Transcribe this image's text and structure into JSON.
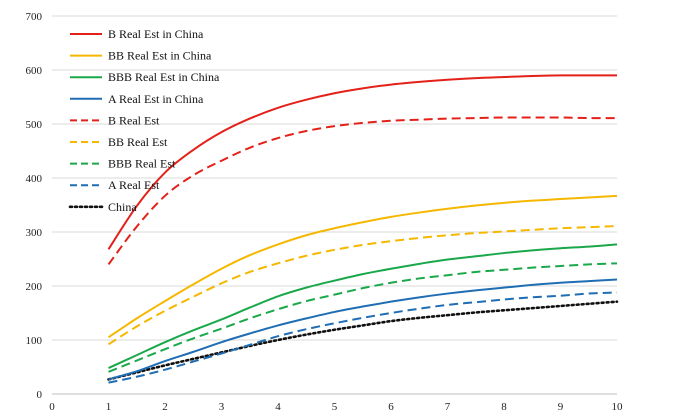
{
  "chart_data": {
    "type": "line",
    "title": "",
    "xlabel": "",
    "ylabel": "",
    "xlim": [
      0,
      10
    ],
    "ylim": [
      0,
      700
    ],
    "x_ticks": [
      "0",
      "1",
      "2",
      "3",
      "4",
      "5",
      "6",
      "7",
      "8",
      "9",
      "10"
    ],
    "y_ticks": [
      "0",
      "100",
      "200",
      "300",
      "400",
      "500",
      "600",
      "700"
    ],
    "grid": "horizontal",
    "legend_position": "top-left",
    "x": [
      1,
      1.5,
      2,
      2.5,
      3,
      3.5,
      4,
      4.5,
      5,
      5.5,
      6,
      6.5,
      7,
      7.5,
      8,
      8.5,
      9,
      9.5,
      10
    ],
    "series": [
      {
        "name": "B Real Est in China",
        "color": "#e32119",
        "dash": "solid",
        "values": [
          268,
          348,
          410,
          452,
          485,
          510,
          530,
          545,
          557,
          566,
          573,
          578,
          582,
          585,
          587,
          589,
          590,
          590,
          590
        ]
      },
      {
        "name": "BB Real Est in China",
        "color": "#f5b700",
        "dash": "solid",
        "values": [
          105,
          140,
          172,
          203,
          232,
          257,
          277,
          294,
          307,
          318,
          328,
          336,
          343,
          349,
          354,
          358,
          361,
          364,
          367
        ]
      },
      {
        "name": "BBB Real Est in China",
        "color": "#1aa84a",
        "dash": "solid",
        "values": [
          48,
          72,
          96,
          118,
          138,
          160,
          181,
          197,
          210,
          222,
          232,
          241,
          249,
          255,
          261,
          266,
          270,
          273,
          277
        ]
      },
      {
        "name": "A Real Est in China",
        "color": "#1f6db3",
        "dash": "solid",
        "values": [
          27,
          42,
          61,
          78,
          96,
          112,
          127,
          140,
          152,
          162,
          171,
          179,
          186,
          192,
          197,
          202,
          206,
          209,
          212
        ]
      },
      {
        "name": "B Real Est",
        "color": "#e32119",
        "dash": "dashed",
        "values": [
          240,
          310,
          367,
          405,
          432,
          456,
          474,
          487,
          496,
          502,
          506,
          508,
          510,
          511,
          512,
          512,
          512,
          511,
          511
        ]
      },
      {
        "name": "BB Real Est",
        "color": "#f5b700",
        "dash": "dashed",
        "values": [
          92,
          125,
          154,
          180,
          205,
          226,
          242,
          256,
          267,
          276,
          283,
          289,
          294,
          298,
          301,
          304,
          307,
          309,
          311
        ]
      },
      {
        "name": "BBB Real Est",
        "color": "#1aa84a",
        "dash": "dashed",
        "values": [
          41,
          62,
          83,
          103,
          121,
          140,
          157,
          172,
          184,
          196,
          206,
          214,
          220,
          226,
          230,
          234,
          237,
          240,
          242
        ]
      },
      {
        "name": "A Real Est",
        "color": "#1f6db3",
        "dash": "dashed",
        "values": [
          21,
          32,
          45,
          60,
          75,
          91,
          107,
          120,
          131,
          141,
          150,
          158,
          165,
          170,
          175,
          179,
          182,
          186,
          188
        ]
      },
      {
        "name": "China",
        "color": "#111111",
        "dash": "dotted",
        "values": [
          27,
          40,
          53,
          65,
          77,
          89,
          100,
          110,
          119,
          127,
          135,
          141,
          146,
          151,
          155,
          159,
          163,
          167,
          171
        ]
      }
    ]
  }
}
